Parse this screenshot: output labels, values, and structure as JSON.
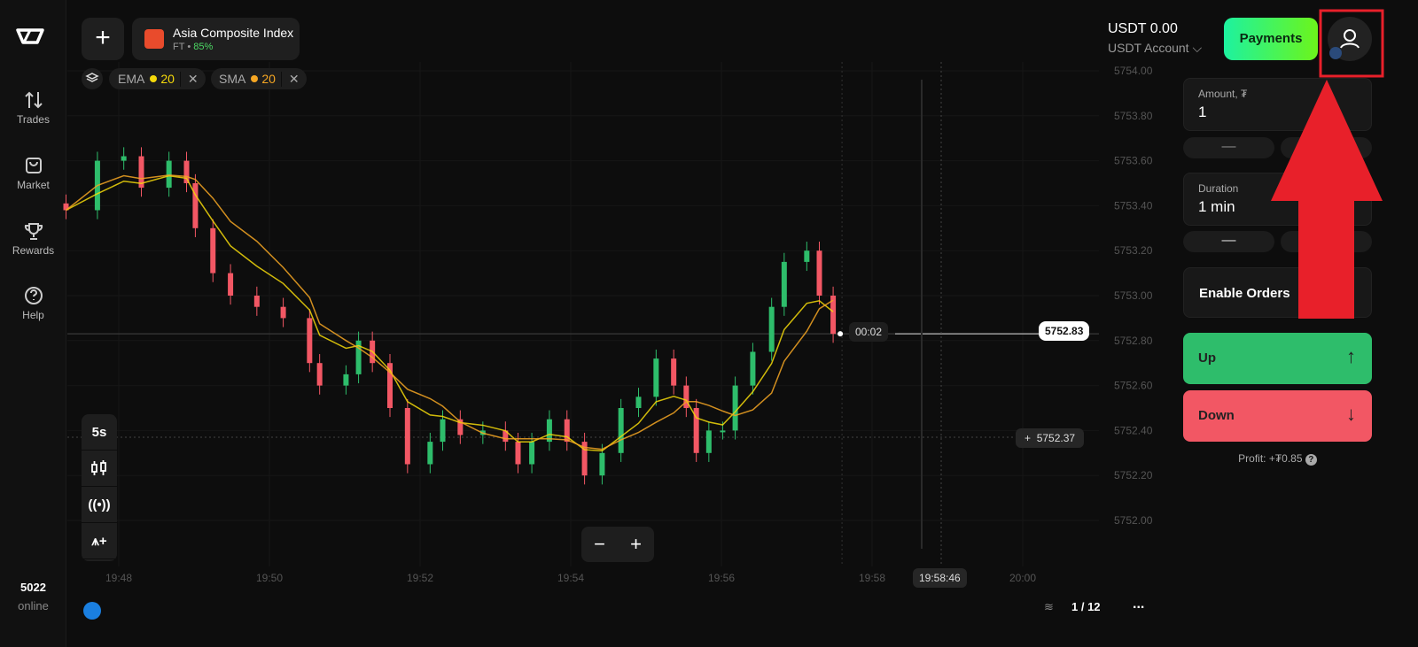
{
  "sidebar": {
    "items": [
      {
        "label": "Trades",
        "icon": "arrows-up-down-icon"
      },
      {
        "label": "Market",
        "icon": "bag-icon"
      },
      {
        "label": "Rewards",
        "icon": "trophy-icon"
      },
      {
        "label": "Help",
        "icon": "question-icon"
      }
    ],
    "online_count": "5022",
    "online_label": "online"
  },
  "asset": {
    "name": "Asia Composite Index",
    "type": "FT",
    "separator": "•",
    "payout": "85%"
  },
  "indicators": [
    {
      "name": "EMA",
      "period": "20",
      "color": "#f5d90a"
    },
    {
      "name": "SMA",
      "period": "20",
      "color": "#f5a623"
    }
  ],
  "toolbar": {
    "timeframe": "5s"
  },
  "account": {
    "balance": "USDT 0.00",
    "account_label": "USDT Account",
    "payments_label": "Payments"
  },
  "panel": {
    "amount_label": "Amount, ₮",
    "amount_value": "1",
    "minus": "—",
    "duration_label": "Duration",
    "duration_value": "1 min",
    "enable_orders": "Enable Orders",
    "up_label": "Up",
    "down_label": "Down",
    "up_arrow": "↑",
    "down_arrow": "↓",
    "profit": "Profit: +₮0.85",
    "help": "?"
  },
  "bottom": {
    "page": "1 / 12",
    "more": "..."
  },
  "colors": {
    "up": "#2ebd6b",
    "down": "#f25764",
    "annotation": "#e8202a"
  },
  "chart_data": {
    "type": "candlestick",
    "y_ticks": [
      "5754.00",
      "5753.80",
      "5753.60",
      "5753.40",
      "5753.20",
      "5753.00",
      "5752.80",
      "5752.60",
      "5752.40",
      "5752.20",
      "5752.00"
    ],
    "ylim": [
      5752.0,
      5754.0
    ],
    "x_ticks": [
      "19:48",
      "19:50",
      "19:52",
      "19:54",
      "19:56",
      "19:58",
      "20:00"
    ],
    "current_price": "5752.83",
    "timer": "00:02",
    "crosshair_price": "5752.37",
    "crosshair_time": "19:58:46",
    "times": [
      "19:47:18",
      "19:47:43",
      "19:48:04",
      "19:48:18",
      "19:48:40",
      "19:48:54",
      "19:49:01",
      "19:49:15",
      "19:49:29",
      "19:49:50",
      "19:50:11",
      "19:50:32",
      "19:50:40",
      "19:51:01",
      "19:51:11",
      "19:51:22",
      "19:51:36",
      "19:51:50",
      "19:52:08",
      "19:52:18",
      "19:52:32",
      "19:52:50",
      "19:53:08",
      "19:53:18",
      "19:53:29",
      "19:53:43",
      "19:53:57",
      "19:54:11",
      "19:54:25",
      "19:54:40",
      "19:54:54",
      "19:55:08",
      "19:55:22",
      "19:55:32",
      "19:55:40",
      "19:55:50",
      "19:56:01",
      "19:56:11",
      "19:56:25",
      "19:56:40",
      "19:56:50",
      "19:57:08",
      "19:57:18",
      "19:57:29"
    ],
    "close": [
      5753.38,
      5753.6,
      5753.62,
      5753.48,
      5753.6,
      5753.5,
      5753.3,
      5753.1,
      5753.0,
      5752.95,
      5752.9,
      5752.7,
      5752.6,
      5752.65,
      5752.8,
      5752.7,
      5752.5,
      5752.25,
      5752.35,
      5752.45,
      5752.38,
      5752.4,
      5752.35,
      5752.25,
      5752.35,
      5752.45,
      5752.35,
      5752.2,
      5752.3,
      5752.5,
      5752.55,
      5752.72,
      5752.6,
      5752.5,
      5752.3,
      5752.4,
      5752.4,
      5752.6,
      5752.75,
      5752.95,
      5753.15,
      5753.2,
      5753.0,
      5752.83
    ]
  }
}
